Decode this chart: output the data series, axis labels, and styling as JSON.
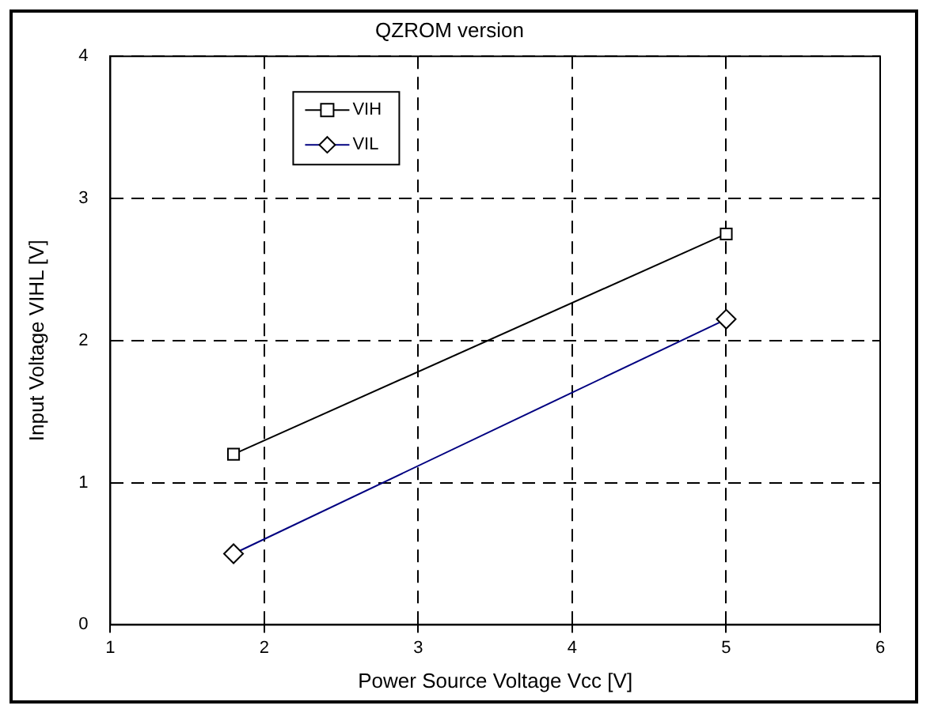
{
  "chart_data": {
    "type": "line",
    "title": "QZROM version",
    "xlabel": "Power Source Voltage Vcc [V]",
    "ylabel": "Input Voltage VIHL [V]",
    "x": [
      1.8,
      5
    ],
    "series": [
      {
        "name": "VIH",
        "color": "#000000",
        "marker": "square",
        "values": [
          1.2,
          2.75
        ]
      },
      {
        "name": "VIL",
        "color": "#000080",
        "marker": "diamond",
        "values": [
          0.5,
          2.15
        ]
      }
    ],
    "xlim": [
      1,
      6
    ],
    "xticks": [
      1,
      2,
      3,
      4,
      5,
      6
    ],
    "ylim": [
      0,
      4
    ],
    "yticks": [
      0,
      1,
      2,
      3,
      4
    ],
    "grid": true,
    "legend": "top left",
    "line_style": "solid"
  }
}
